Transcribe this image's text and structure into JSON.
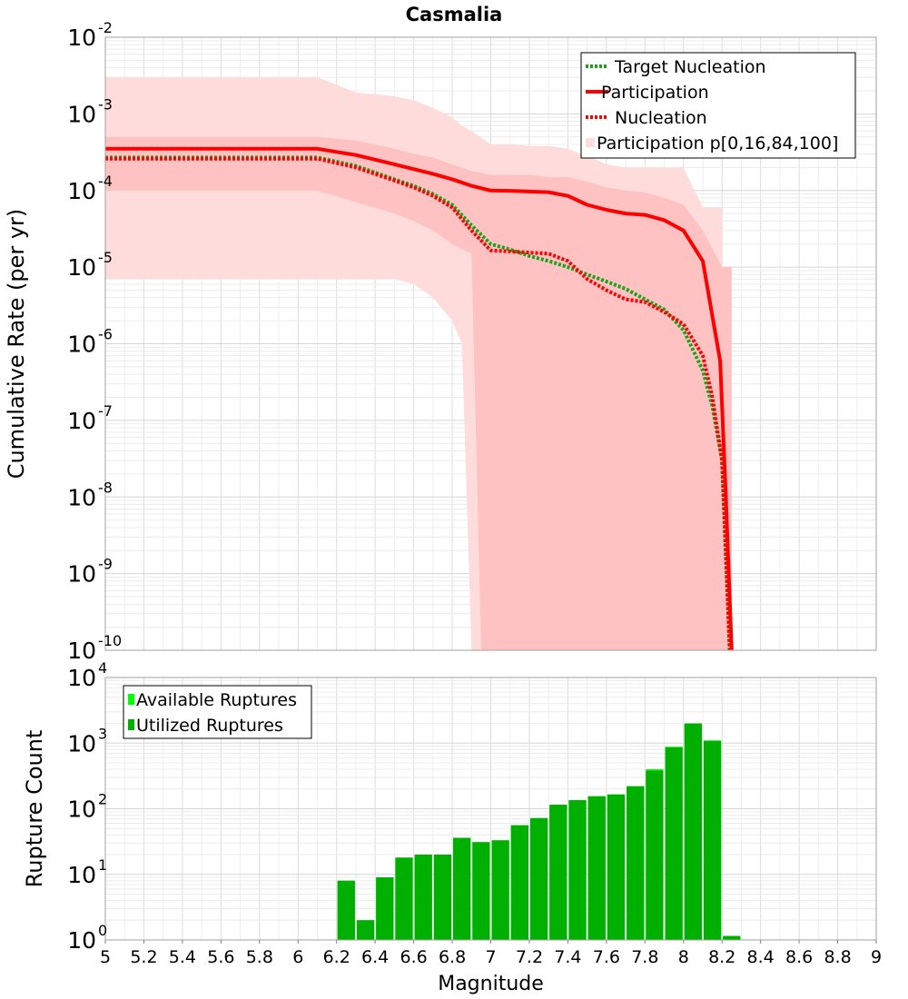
{
  "title": "Casmalia",
  "chart_data": [
    {
      "type": "line",
      "ylabel": "Cumulative Rate (per yr)",
      "yscale": "log",
      "xlim": [
        5,
        9
      ],
      "ylim": [
        1e-10,
        0.01
      ],
      "y_ticks": [
        {
          "base": "10",
          "exp": "-2",
          "value": 0.01
        },
        {
          "base": "10",
          "exp": "-3",
          "value": 0.001
        },
        {
          "base": "10",
          "exp": "-4",
          "value": 0.0001
        },
        {
          "base": "10",
          "exp": "-5",
          "value": 1e-05
        },
        {
          "base": "10",
          "exp": "-6",
          "value": 1e-06
        },
        {
          "base": "10",
          "exp": "-7",
          "value": 1e-07
        },
        {
          "base": "10",
          "exp": "-8",
          "value": 1e-08
        },
        {
          "base": "10",
          "exp": "-9",
          "value": 1e-09
        },
        {
          "base": "10",
          "exp": "-10",
          "value": 1e-10
        }
      ],
      "grid": true,
      "legend_position": "top-right",
      "colors": {
        "participation": "#ff0000",
        "target": "#18a418",
        "band_outer": "#ffdcdc",
        "band_inner": "#ffc2c2"
      },
      "series": [
        {
          "name": "Target Nucleation",
          "style": "dotted",
          "color": "#18a418",
          "x": [
            5.0,
            6.1,
            6.3,
            6.5,
            6.6,
            6.7,
            6.8,
            6.9,
            7.0,
            7.1,
            7.2,
            7.3,
            7.4,
            7.5,
            7.6,
            7.7,
            7.8,
            7.9,
            8.0,
            8.1,
            8.15,
            8.2,
            8.24
          ],
          "y": [
            0.00027,
            0.00027,
            0.00021,
            0.00014,
            0.000115,
            9e-05,
            6.5e-05,
            3.5e-05,
            2e-05,
            1.7e-05,
            1.4e-05,
            1.2e-05,
            1e-05,
            8e-06,
            6.5e-06,
            5.2e-06,
            3.8e-06,
            2.8e-06,
            1.5e-06,
            4.5e-07,
            1.5e-07,
            3e-08,
            1e-10
          ]
        },
        {
          "name": "Participation",
          "style": "solid",
          "color": "#ff0000",
          "x": [
            5.0,
            6.1,
            6.3,
            6.5,
            6.6,
            6.7,
            6.8,
            6.9,
            7.0,
            7.1,
            7.2,
            7.3,
            7.4,
            7.5,
            7.6,
            7.7,
            7.8,
            7.9,
            8.0,
            8.1,
            8.19,
            8.22,
            8.25
          ],
          "y": [
            0.00035,
            0.00035,
            0.00029,
            0.00022,
            0.00019,
            0.000165,
            0.00014,
            0.000115,
            0.0001,
            9.9e-05,
            9.7e-05,
            9.5e-05,
            8.5e-05,
            6.5e-05,
            5.6e-05,
            5e-05,
            4.8e-05,
            4.1e-05,
            3e-05,
            1.2e-05,
            6e-07,
            1e-08,
            1e-10
          ]
        },
        {
          "name": "Nucleation",
          "style": "dotted",
          "color": "#ff0000",
          "x": [
            5.0,
            6.1,
            6.3,
            6.5,
            6.6,
            6.7,
            6.8,
            6.9,
            7.0,
            7.1,
            7.2,
            7.3,
            7.4,
            7.5,
            7.6,
            7.7,
            7.8,
            7.9,
            8.0,
            8.1,
            8.15,
            8.2,
            8.24
          ],
          "y": [
            0.00026,
            0.00026,
            0.0002,
            0.000135,
            0.00011,
            8.5e-05,
            6e-05,
            3e-05,
            1.65e-05,
            1.6e-05,
            1.55e-05,
            1.5e-05,
            1.2e-05,
            7e-06,
            5e-06,
            3.8e-06,
            3.5e-06,
            2.6e-06,
            1.8e-06,
            7e-07,
            2e-07,
            3e-08,
            1e-10
          ]
        },
        {
          "name": "Participation p[0,16,84,100]",
          "style": "band",
          "outer": {
            "x": [
              5.0,
              6.1,
              6.2,
              6.3,
              6.5,
              6.6,
              6.7,
              6.8,
              6.85,
              6.9,
              7.0,
              7.1,
              7.2,
              7.3,
              7.4,
              7.5,
              7.6,
              7.7,
              7.8,
              7.9,
              8.0,
              8.1,
              8.19,
              8.2
            ],
            "lower": [
              7e-06,
              7e-06,
              7e-06,
              7e-06,
              7e-06,
              6e-06,
              4e-06,
              2e-06,
              1e-06,
              1e-10,
              1e-10,
              1e-10,
              1e-10,
              1e-10,
              1e-10,
              1e-10,
              1e-10,
              1e-10,
              1e-10,
              1e-10,
              1e-10,
              1e-10,
              1e-10,
              1e-10
            ],
            "upper": [
              0.003,
              0.003,
              0.0024,
              0.0019,
              0.0017,
              0.0015,
              0.0012,
              0.0009,
              0.0007,
              0.0006,
              0.0004,
              0.0004,
              0.00038,
              0.00038,
              0.00035,
              0.00028,
              0.00022,
              0.0002,
              0.0002,
              0.0002,
              0.0002,
              6e-05,
              6e-05,
              6e-05
            ]
          },
          "inner": {
            "x": [
              5.0,
              6.1,
              6.3,
              6.5,
              6.6,
              6.7,
              6.8,
              6.9,
              6.95,
              7.0,
              7.1,
              7.2,
              7.3,
              7.4,
              7.5,
              7.6,
              7.7,
              7.8,
              7.9,
              8.0,
              8.1,
              8.2,
              8.25
            ],
            "lower": [
              0.0001,
              0.0001,
              7e-05,
              5e-05,
              4e-05,
              3e-05,
              2e-05,
              1.5e-05,
              1e-10,
              1e-10,
              1e-10,
              1e-10,
              1e-10,
              1e-10,
              1e-10,
              1e-10,
              1e-10,
              1e-10,
              1e-10,
              1e-10,
              1e-10,
              1e-10,
              1e-10
            ],
            "upper": [
              0.0005,
              0.0005,
              0.00045,
              0.00035,
              0.0003,
              0.00027,
              0.00022,
              0.00018,
              0.00017,
              0.00016,
              0.00016,
              0.00016,
              0.00015,
              0.00015,
              0.00013,
              0.00011,
              0.0001,
              9.5e-05,
              8e-05,
              6.5e-05,
              3e-05,
              1e-05,
              1e-05
            ]
          }
        }
      ]
    },
    {
      "type": "bar",
      "xlabel": "Magnitude",
      "ylabel": "Rupture Count",
      "yscale": "log",
      "xlim": [
        5,
        9
      ],
      "ylim": [
        1,
        10000
      ],
      "y_ticks": [
        {
          "base": "10",
          "exp": "4",
          "value": 10000
        },
        {
          "base": "10",
          "exp": "3",
          "value": 1000
        },
        {
          "base": "10",
          "exp": "2",
          "value": 100
        },
        {
          "base": "10",
          "exp": "1",
          "value": 10
        },
        {
          "base": "10",
          "exp": "0",
          "value": 1
        }
      ],
      "x_ticks": [
        "5",
        "5.2",
        "5.4",
        "5.6",
        "5.8",
        "6",
        "6.2",
        "6.4",
        "6.6",
        "6.8",
        "7",
        "7.2",
        "7.4",
        "7.6",
        "7.8",
        "8",
        "8.2",
        "8.4",
        "8.6",
        "8.8",
        "9"
      ],
      "bin_width": 0.1,
      "grid": true,
      "legend_position": "top-left",
      "colors": {
        "available": "#00ff00",
        "utilized": "#00b000"
      },
      "series": [
        {
          "name": "Available Ruptures",
          "x": [
            6.25,
            6.35,
            6.45,
            6.55,
            6.65,
            6.75,
            6.85,
            6.95,
            7.05,
            7.15,
            7.25,
            7.35,
            7.45,
            7.55,
            7.65,
            7.75,
            7.85,
            7.95,
            8.05,
            8.15,
            8.25
          ],
          "values": [
            8,
            2,
            9,
            18,
            20,
            20,
            36,
            31,
            33,
            56,
            72,
            115,
            135,
            155,
            165,
            220,
            400,
            880,
            2000,
            1100,
            1
          ]
        },
        {
          "name": "Utilized Ruptures",
          "x": [
            6.25,
            6.35,
            6.45,
            6.55,
            6.65,
            6.75,
            6.85,
            6.95,
            7.05,
            7.15,
            7.25,
            7.35,
            7.45,
            7.55,
            7.65,
            7.75,
            7.85,
            7.95,
            8.05,
            8.15,
            8.25
          ],
          "values": [
            8,
            2,
            9,
            18,
            20,
            20,
            36,
            31,
            33,
            56,
            72,
            115,
            135,
            155,
            165,
            220,
            380,
            860,
            1990,
            1080,
            1
          ]
        }
      ]
    }
  ]
}
